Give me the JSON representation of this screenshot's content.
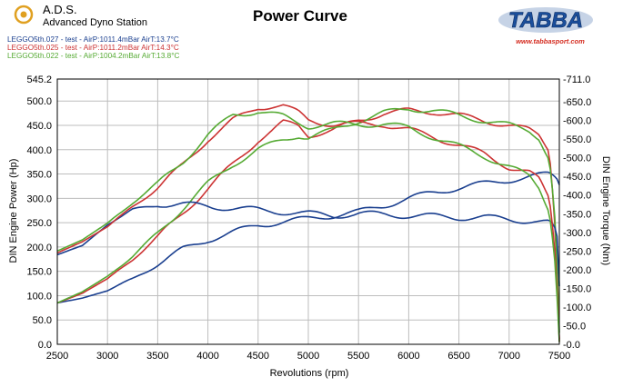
{
  "header": {
    "logo_title": "A.D.S.",
    "logo_subtitle": "Advanced Dyno Station",
    "chart_title": "Power Curve",
    "brand": "TABBA",
    "brand_url": "www.tabbasport.com"
  },
  "colors": {
    "blue": "#1a3f8f",
    "red": "#cc3333",
    "green": "#55aa33",
    "grid": "#bdbdbd",
    "brand_blue": "#1b4f9c",
    "brand_red": "#d42a1e",
    "logo_orange": "#e0a020"
  },
  "chart_data": {
    "type": "line",
    "title": "Power Curve",
    "xlabel": "Revolutions (rpm)",
    "ylabel": "DIN Engine Power (Hp)",
    "y2label": "DIN Engine Torque (Nm)",
    "xlim": [
      2500,
      7500
    ],
    "ylim": [
      0,
      545.2
    ],
    "y2lim": [
      0,
      711
    ],
    "x_ticks": [
      "2500",
      "3000",
      "3500",
      "4000",
      "4500",
      "5000",
      "5500",
      "6000",
      "6500",
      "7000",
      "7500"
    ],
    "y_ticks": [
      "0.0",
      "50.0",
      "100.0",
      "150.0",
      "200.0",
      "250.0",
      "300.0",
      "350.0",
      "400.0",
      "450.0",
      "500.0",
      "545.2"
    ],
    "y2_ticks": [
      "-0.0",
      "-50.0",
      "-100.0",
      "-150.0",
      "-200.0",
      "-250.0",
      "-300.0",
      "-350.0",
      "-400.0",
      "-450.0",
      "-500.0",
      "-550.0",
      "-600.0",
      "-650.0",
      "-711.0"
    ],
    "legend": [
      {
        "label": "LEGGO5th.027 - test  - AirP:1011.4mBar AirT:13.7°C",
        "color": "#1a3f8f"
      },
      {
        "label": "LEGGO5th.025 - test  - AirP:1011.2mBar AirT:14.3°C",
        "color": "#cc3333"
      },
      {
        "label": "LEGGO5th.022 - test  - AirP:1004.2mBar AirT:13.8°C",
        "color": "#55aa33"
      }
    ],
    "series": [
      {
        "name": "Power 027",
        "color": "#1a3f8f",
        "axis": "left",
        "x": [
          2500,
          2750,
          3000,
          3250,
          3500,
          3750,
          4000,
          4250,
          4500,
          4750,
          5000,
          5250,
          5500,
          5750,
          6000,
          6250,
          6500,
          6750,
          7000,
          7250,
          7400,
          7450,
          7480,
          7500
        ],
        "y": [
          85,
          95,
          110,
          135,
          165,
          195,
          215,
          230,
          245,
          252,
          258,
          265,
          272,
          285,
          300,
          312,
          322,
          330,
          338,
          345,
          350,
          345,
          340,
          330
        ]
      },
      {
        "name": "Power 025",
        "color": "#cc3333",
        "axis": "left",
        "x": [
          2500,
          2750,
          3000,
          3250,
          3500,
          3750,
          4000,
          4250,
          4500,
          4650,
          4750,
          4900,
          5000,
          5250,
          5500,
          5750,
          6000,
          6250,
          6500,
          6750,
          7000,
          7200,
          7300,
          7400,
          7440,
          7470,
          7500
        ],
        "y": [
          85,
          105,
          135,
          175,
          220,
          270,
          320,
          370,
          420,
          440,
          455,
          450,
          430,
          440,
          460,
          475,
          480,
          478,
          470,
          460,
          450,
          440,
          430,
          400,
          300,
          200,
          10
        ]
      },
      {
        "name": "Power 022",
        "color": "#55aa33",
        "axis": "left",
        "x": [
          2500,
          2750,
          3000,
          3250,
          3500,
          3750,
          4000,
          4250,
          4500,
          4750,
          4900,
          5000,
          5250,
          5500,
          5750,
          6000,
          6250,
          6500,
          6750,
          7000,
          7200,
          7300,
          7400,
          7450,
          7480,
          7500
        ],
        "y": [
          85,
          108,
          140,
          180,
          228,
          280,
          330,
          370,
          400,
          420,
          430,
          425,
          440,
          460,
          475,
          485,
          480,
          470,
          460,
          450,
          440,
          425,
          380,
          280,
          150,
          20
        ]
      },
      {
        "name": "Torque 027",
        "color": "#1a3f8f",
        "axis": "right",
        "x": [
          2500,
          2750,
          3000,
          3250,
          3500,
          3750,
          4000,
          4250,
          4500,
          4750,
          5000,
          5250,
          5500,
          5750,
          6000,
          6250,
          6500,
          6750,
          7000,
          7250,
          7400,
          7450,
          7480,
          7500
        ],
        "y": [
          240,
          265,
          320,
          360,
          375,
          375,
          370,
          365,
          360,
          355,
          350,
          345,
          350,
          348,
          345,
          343,
          340,
          340,
          335,
          330,
          325,
          310,
          280,
          150
        ]
      },
      {
        "name": "Torque 025",
        "color": "#cc3333",
        "axis": "right",
        "x": [
          2500,
          2750,
          3000,
          3250,
          3500,
          3750,
          4000,
          4250,
          4500,
          4650,
          4750,
          4900,
          5000,
          5250,
          5500,
          5750,
          6000,
          6250,
          6500,
          6750,
          7000,
          7200,
          7300,
          7400,
          7440,
          7470,
          7500
        ],
        "y": [
          245,
          275,
          315,
          370,
          420,
          480,
          550,
          600,
          635,
          640,
          640,
          620,
          600,
          590,
          590,
          590,
          575,
          555,
          535,
          510,
          475,
          460,
          440,
          390,
          300,
          200,
          20
        ]
      },
      {
        "name": "Torque 022",
        "color": "#55aa33",
        "axis": "right",
        "x": [
          2500,
          2750,
          3000,
          3250,
          3500,
          3750,
          4000,
          4250,
          4500,
          4750,
          4900,
          5000,
          5250,
          5500,
          5750,
          6000,
          6250,
          6500,
          6750,
          7000,
          7200,
          7300,
          7400,
          7450,
          7480,
          7500
        ],
        "y": [
          250,
          280,
          325,
          380,
          430,
          490,
          560,
          615,
          625,
          610,
          595,
          585,
          590,
          590,
          590,
          580,
          555,
          530,
          505,
          475,
          450,
          420,
          360,
          250,
          120,
          10
        ]
      }
    ]
  }
}
